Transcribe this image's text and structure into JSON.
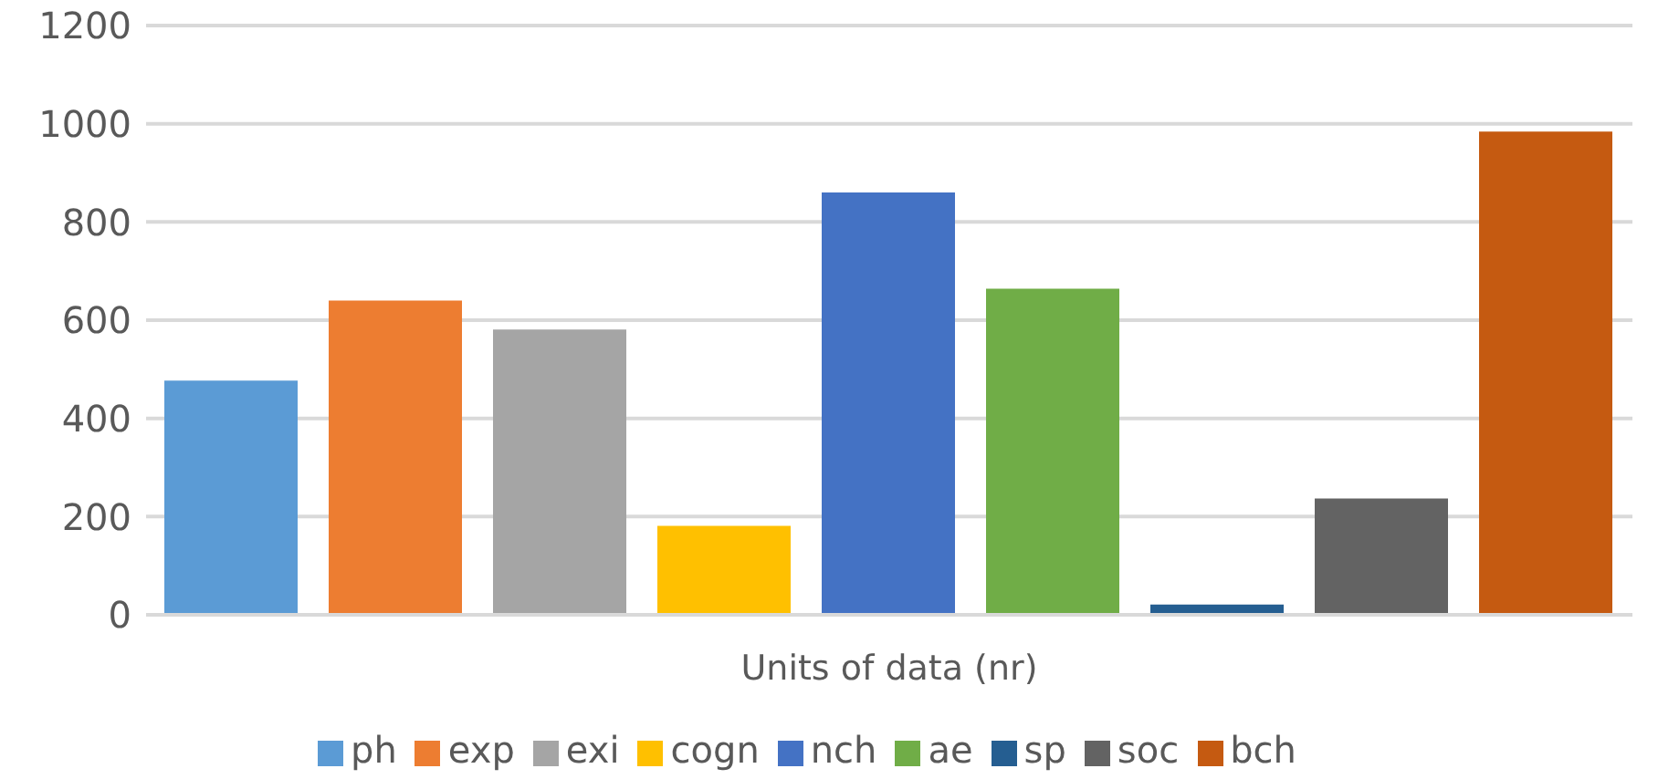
{
  "chart_data": {
    "type": "bar",
    "categories": [
      "Units of data (nr)"
    ],
    "series": [
      {
        "name": "ph",
        "color": "#5b9bd5",
        "values": [
          477
        ]
      },
      {
        "name": "exp",
        "color": "#ed7d31",
        "values": [
          640
        ]
      },
      {
        "name": "exi",
        "color": "#a5a5a5",
        "values": [
          581
        ]
      },
      {
        "name": "cogn",
        "color": "#ffc000",
        "values": [
          181
        ]
      },
      {
        "name": "nch",
        "color": "#4472c4",
        "values": [
          860
        ]
      },
      {
        "name": "ae",
        "color": "#70ad47",
        "values": [
          664
        ]
      },
      {
        "name": "sp",
        "color": "#255e91",
        "values": [
          21
        ]
      },
      {
        "name": "soc",
        "color": "#636363",
        "values": [
          237
        ]
      },
      {
        "name": "bch",
        "color": "#c55a11",
        "values": [
          984
        ]
      }
    ],
    "ylim": [
      0,
      1200
    ],
    "yticks": [
      0,
      200,
      400,
      600,
      800,
      1000,
      1200
    ],
    "grid": "y",
    "legend": "bottom"
  }
}
